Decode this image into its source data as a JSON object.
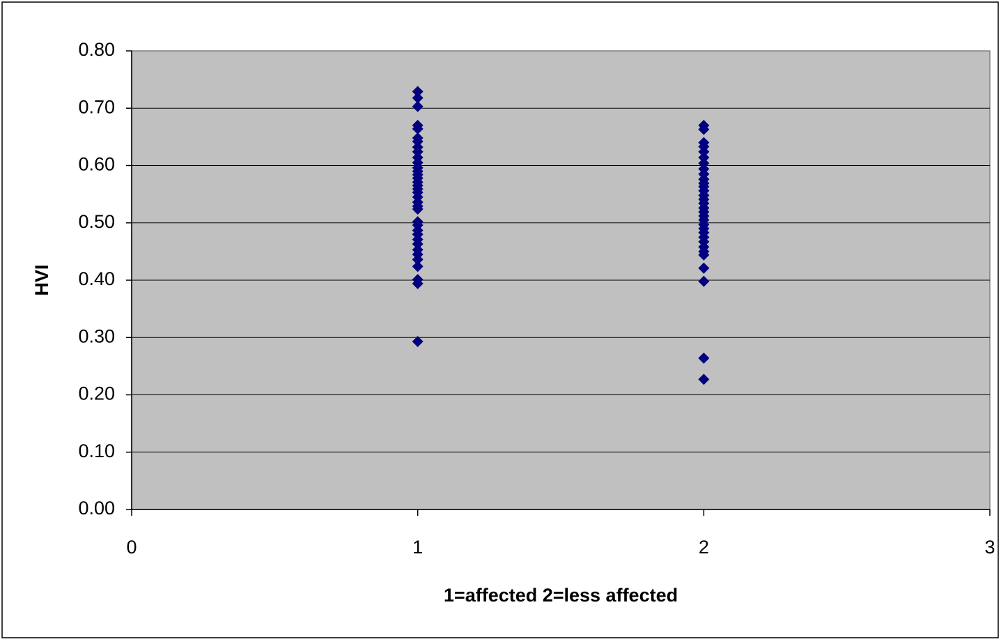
{
  "chart_data": {
    "type": "scatter",
    "x_label": "1=affected 2=less affected",
    "y_label": "HVI",
    "x": [
      1,
      1,
      1,
      1,
      1,
      1,
      1,
      1,
      1,
      1,
      1,
      1,
      1,
      1,
      1,
      1,
      1,
      1,
      1,
      1,
      1,
      1,
      1,
      1,
      1,
      1,
      1,
      1,
      1,
      1,
      1,
      1,
      1,
      1,
      1,
      1,
      2,
      2,
      2,
      2,
      2,
      2,
      2,
      2,
      2,
      2,
      2,
      2,
      2,
      2,
      2,
      2,
      2,
      2,
      2,
      2,
      2,
      2,
      2,
      2,
      2,
      2,
      2,
      2,
      2,
      2,
      2,
      2
    ],
    "values": [
      0.729,
      0.718,
      0.703,
      0.67,
      0.664,
      0.648,
      0.642,
      0.632,
      0.624,
      0.614,
      0.605,
      0.596,
      0.59,
      0.584,
      0.578,
      0.571,
      0.565,
      0.559,
      0.553,
      0.545,
      0.536,
      0.529,
      0.524,
      0.502,
      0.496,
      0.487,
      0.48,
      0.471,
      0.463,
      0.453,
      0.445,
      0.436,
      0.424,
      0.401,
      0.394,
      0.293,
      0.67,
      0.663,
      0.64,
      0.633,
      0.624,
      0.614,
      0.604,
      0.594,
      0.585,
      0.576,
      0.569,
      0.563,
      0.556,
      0.548,
      0.541,
      0.534,
      0.526,
      0.519,
      0.512,
      0.505,
      0.497,
      0.49,
      0.483,
      0.475,
      0.467,
      0.458,
      0.45,
      0.444,
      0.421,
      0.398,
      0.264,
      0.227
    ],
    "color": "#000080",
    "xlim": [
      0,
      3
    ],
    "xticks": [
      0,
      1,
      2,
      3
    ],
    "ylim": [
      0,
      0.8
    ],
    "yticks": [
      {
        "value": 0,
        "label": "0.00"
      },
      {
        "value": 0.1,
        "label": "0.10"
      },
      {
        "value": 0.2,
        "label": "0.20"
      },
      {
        "value": 0.3,
        "label": "0.30"
      },
      {
        "value": 0.4,
        "label": "0.40"
      },
      {
        "value": 0.5,
        "label": "0.50"
      },
      {
        "value": 0.6,
        "label": "0.60"
      },
      {
        "value": 0.7,
        "label": "0.70"
      },
      {
        "value": 0.8,
        "label": "0.80"
      }
    ],
    "grid": true,
    "plot_background": "#c0c0c0"
  }
}
